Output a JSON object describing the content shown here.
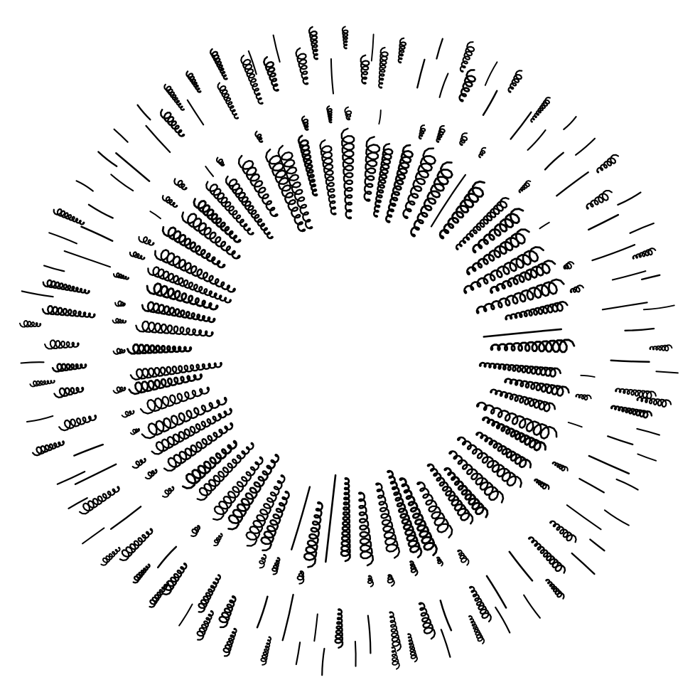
{
  "illustration": {
    "subject": "hand-drawn-squiggle-sunburst-frame",
    "ink_color": "#000000",
    "background_color": "#ffffff",
    "ring_count": 4,
    "ray_count": 64
  }
}
